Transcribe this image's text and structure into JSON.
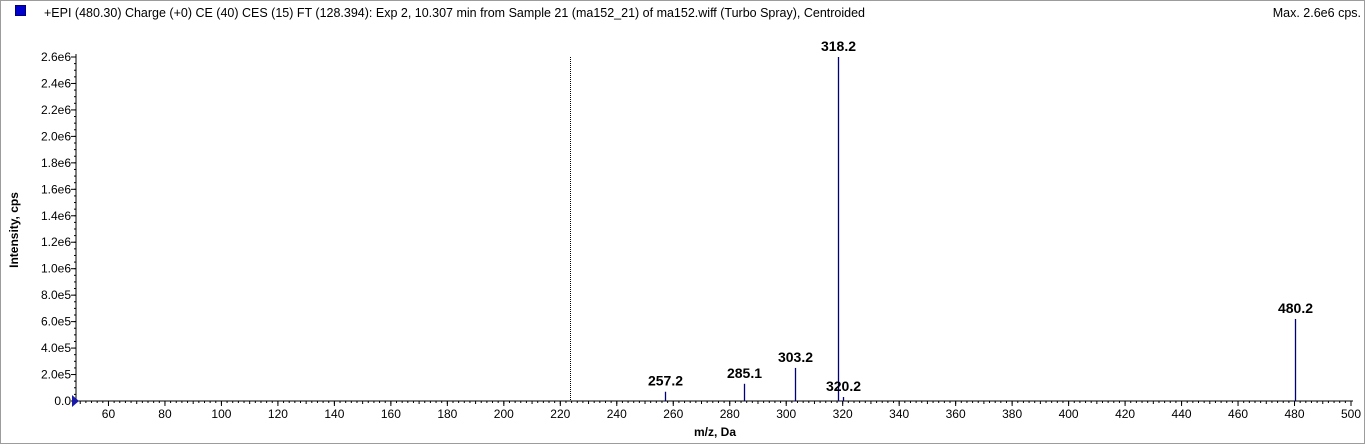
{
  "header": {
    "title": "+EPI (480.30) Charge (+0) CE (40) CES (15) FT (128.394): Exp 2, 10.307 min from Sample 21 (ma152_21) of ma152.wiff (Turbo Spray), Centroided",
    "max_label": "Max. 2.6e6 cps.",
    "swatch_color": "#0000cc"
  },
  "chart_data": {
    "type": "bar",
    "xlabel": "m/z, Da",
    "ylabel": "Intensity, cps",
    "xlim": [
      48.5,
      500
    ],
    "ylim": [
      0,
      2600000.0
    ],
    "x_ticks": [
      60,
      80,
      100,
      120,
      140,
      160,
      180,
      200,
      220,
      240,
      260,
      280,
      300,
      320,
      340,
      360,
      380,
      400,
      420,
      440,
      460,
      480,
      500
    ],
    "x_tick_labels": [
      "60",
      "80",
      "100",
      "120",
      "140",
      "160",
      "180",
      "200",
      "220",
      "240",
      "260",
      "280",
      "300",
      "320",
      "340",
      "360",
      "380",
      "400",
      "420",
      "440",
      "460",
      "480",
      "500"
    ],
    "y_ticks": [
      0,
      200000,
      400000,
      600000,
      800000,
      1000000,
      1200000,
      1400000,
      1600000,
      1800000,
      2000000,
      2200000,
      2400000,
      2600000
    ],
    "y_tick_labels": [
      "0.0",
      "2.0e5",
      "4.0e5",
      "6.0e5",
      "8.0e5",
      "1.0e6",
      "1.2e6",
      "1.4e6",
      "1.6e6",
      "1.8e6",
      "2.0e6",
      "2.2e6",
      "2.4e6",
      "2.6e6"
    ],
    "series_color": "#00007a",
    "grid": false,
    "marker_line_x": 223.5,
    "peaks": [
      {
        "mz": 257.2,
        "intensity": 70000,
        "label": "257.2"
      },
      {
        "mz": 285.1,
        "intensity": 130000,
        "label": "285.1"
      },
      {
        "mz": 303.2,
        "intensity": 250000,
        "label": "303.2"
      },
      {
        "mz": 318.2,
        "intensity": 2600000,
        "label": "318.2"
      },
      {
        "mz": 320.2,
        "intensity": 30000,
        "label": "320.2"
      },
      {
        "mz": 480.2,
        "intensity": 620000,
        "label": "480.2"
      }
    ]
  }
}
